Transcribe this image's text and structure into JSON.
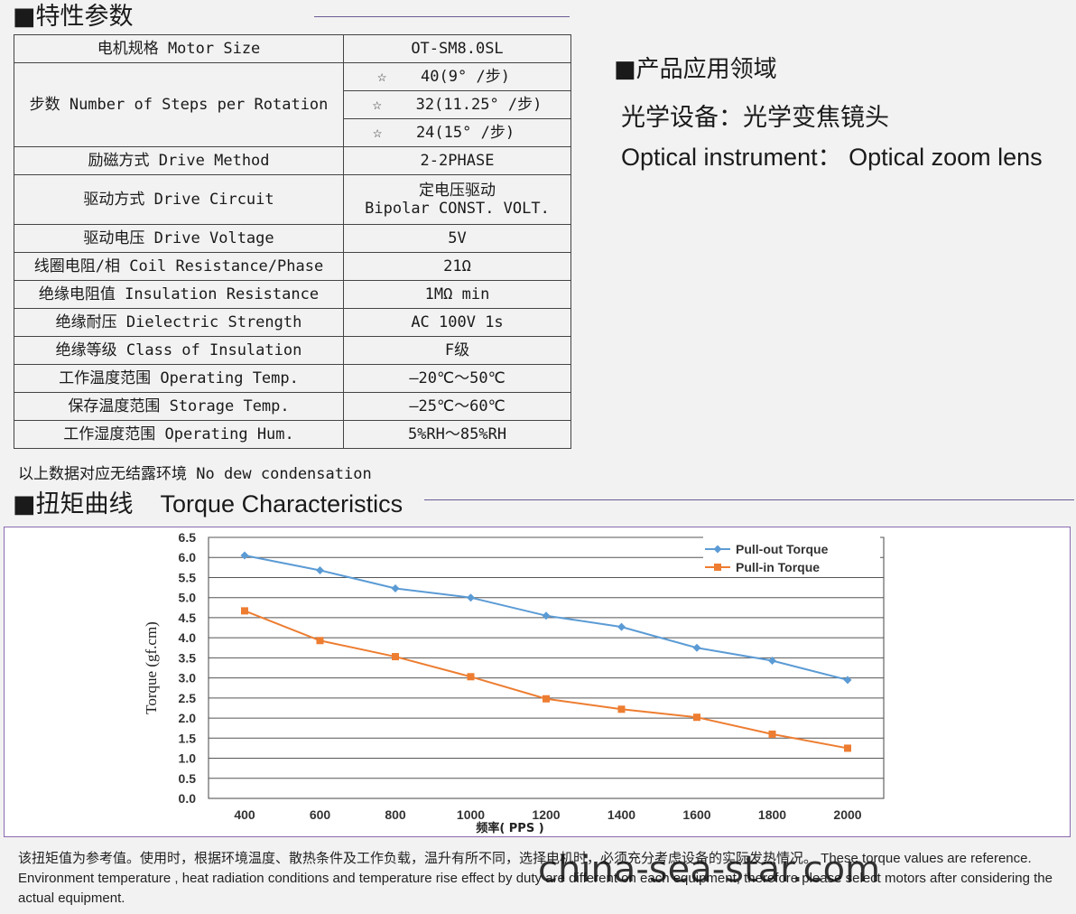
{
  "spec_section": {
    "title": "■特性参数",
    "rows": [
      {
        "label": "电机规格 Motor Size",
        "value": "OT-SM8.0SL"
      },
      {
        "label": "步数 Number of Steps per Rotation",
        "values": [
          {
            "star": "☆",
            "text": "40(9° /步)"
          },
          {
            "star": "☆",
            "text": "32(11.25° /步)"
          },
          {
            "star": "☆",
            "text": "24(15° /步)"
          }
        ]
      },
      {
        "label": "励磁方式 Drive Method",
        "value": "2-2PHASE"
      },
      {
        "label": "驱动方式 Drive Circuit",
        "value": "定电压驱动",
        "value2": "Bipolar CONST. VOLT."
      },
      {
        "label": "驱动电压 Drive Voltage",
        "value": "5V"
      },
      {
        "label": "线圈电阻/相 Coil Resistance/Phase",
        "value": "21Ω"
      },
      {
        "label": "绝缘电阻值 Insulation Resistance",
        "value": "1MΩ min"
      },
      {
        "label": "绝缘耐压 Dielectric Strength",
        "value": "AC 100V 1s"
      },
      {
        "label": "绝缘等级 Class of Insulation",
        "value": "F级"
      },
      {
        "label": "工作温度范围 Operating Temp.",
        "value": "—20℃～50℃"
      },
      {
        "label": "保存温度范围 Storage Temp.",
        "value": "—25℃～60℃"
      },
      {
        "label": "工作湿度范围 Operating Hum.",
        "value": "5%RH～85%RH"
      }
    ],
    "note": "以上数据对应无结露环境 No dew condensation"
  },
  "application": {
    "title": "■产品应用领域",
    "line_cn": "光学设备：光学变焦镜头",
    "line_en": "Optical instrument： Optical zoom lens"
  },
  "torque_section": {
    "title_cn": "■扭矩曲线",
    "title_en": "Torque  Characteristics"
  },
  "chart_data": {
    "type": "line",
    "xlabel": "频率( PPS )",
    "ylabel": "Torque (gf.cm)",
    "x": [
      400,
      600,
      800,
      1000,
      1200,
      1400,
      1600,
      1800,
      2000
    ],
    "ylim": [
      0,
      6.5
    ],
    "yticks": [
      "0.0",
      "0.5",
      "1.0",
      "1.5",
      "2.0",
      "2.5",
      "3.0",
      "3.5",
      "4.0",
      "4.5",
      "5.0",
      "5.5",
      "6.0",
      "6.5"
    ],
    "grid": true,
    "legend_position": "top-right",
    "series": [
      {
        "name": "Pull-out Torque",
        "color": "#5b9bd5",
        "marker": "diamond",
        "values": [
          6.05,
          5.68,
          5.23,
          5.0,
          4.55,
          4.27,
          3.75,
          3.43,
          2.95
        ]
      },
      {
        "name": "Pull-in Torque",
        "color": "#ed7d31",
        "marker": "square",
        "values": [
          4.67,
          3.93,
          3.53,
          3.03,
          2.48,
          2.22,
          2.02,
          1.6,
          1.25
        ]
      }
    ]
  },
  "footnote": "该扭矩值为参考值。使用时，根据环境温度、散热条件及工作负载，温升有所不同，选择电机时，必须充分考虑设备的实际发热情况。 These torque values are reference. Environment temperature , heat radiation conditions and temperature rise effect by duty are different on each equipment, therefore please select motors after considering the actual equipment.",
  "watermark": "china-sea-star.com"
}
